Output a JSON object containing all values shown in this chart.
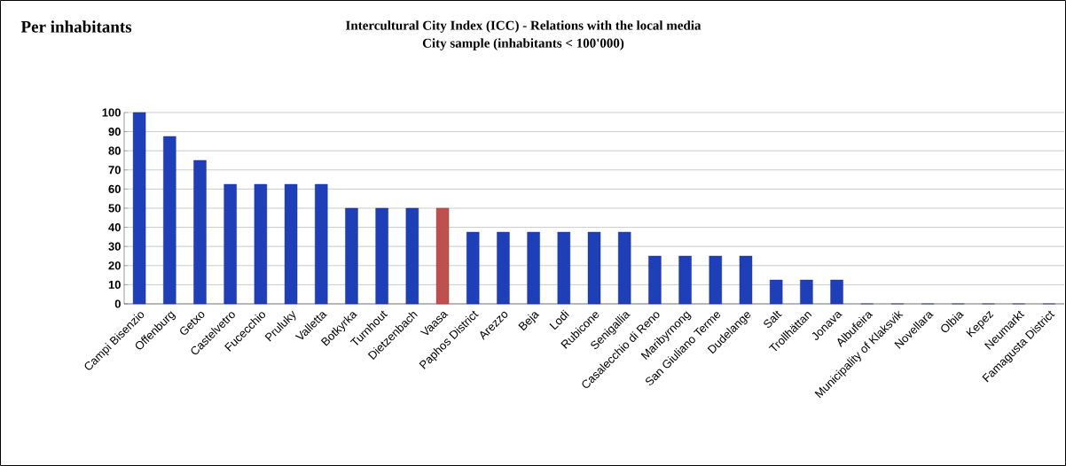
{
  "chart_data": {
    "type": "bar",
    "title": "Intercultural City Index (ICC) - Relations with the local media",
    "subtitle": "City sample (inhabitants < 100'000)",
    "annotations": [
      "Per inhabitants"
    ],
    "categories": [
      "Campi Bisenzio",
      "Offenburg",
      "Getxo",
      "Castelvetro",
      "Fucecchio",
      "Pruluky",
      "Valletta",
      "Botkyrka",
      "Turnhout",
      "Dietzenbach",
      "Vaasa",
      "Paphos District",
      "Arezzo",
      "Beja",
      "Lodi",
      "Rubicone",
      "Senigallia",
      "Casalecchio di Reno",
      "Maribyrnong",
      "San Giuliano Terme",
      "Dudelange",
      "Salt",
      "Trollhättan",
      "Jonava",
      "Albufeira",
      "Municipality of Klaksvik",
      "Novellara",
      "Olbia",
      "Kepez",
      "Neumarkt",
      "Famagusta District"
    ],
    "values": [
      100,
      87.5,
      75,
      62.5,
      62.5,
      62.5,
      62.5,
      50,
      50,
      50,
      50,
      37.5,
      37.5,
      37.5,
      37.5,
      37.5,
      37.5,
      25,
      25,
      25,
      25,
      12.5,
      12.5,
      12.5,
      0,
      0,
      0,
      0,
      0,
      0,
      0
    ],
    "colors": [
      "#1f3fb8",
      "#1f3fb8",
      "#1f3fb8",
      "#1f3fb8",
      "#1f3fb8",
      "#1f3fb8",
      "#1f3fb8",
      "#1f3fb8",
      "#1f3fb8",
      "#1f3fb8",
      "#c0504d",
      "#1f3fb8",
      "#1f3fb8",
      "#1f3fb8",
      "#1f3fb8",
      "#1f3fb8",
      "#1f3fb8",
      "#1f3fb8",
      "#1f3fb8",
      "#1f3fb8",
      "#1f3fb8",
      "#1f3fb8",
      "#1f3fb8",
      "#1f3fb8",
      "#1f3fb8",
      "#1f3fb8",
      "#1f3fb8",
      "#1f3fb8",
      "#1f3fb8",
      "#1f3fb8",
      "#1f3fb8"
    ],
    "ylim": [
      0,
      100
    ],
    "yticks": [
      0,
      10,
      20,
      30,
      40,
      50,
      60,
      70,
      80,
      90,
      100
    ],
    "grid": "y"
  }
}
